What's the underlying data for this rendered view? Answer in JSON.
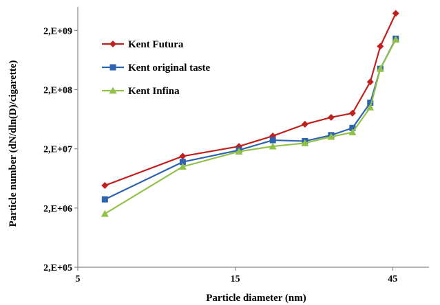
{
  "chart_data": {
    "type": "line",
    "xlabel": "Particle diameter (nm)",
    "ylabel": "Particle number (dN/dln(D)/cigarette)",
    "x_scale": "log",
    "y_scale": "log",
    "xlim": [
      5,
      58
    ],
    "ylim": [
      200000,
      5000000000
    ],
    "x_ticks": [
      5,
      15,
      45
    ],
    "x_tick_labels": [
      "5",
      "15",
      "45"
    ],
    "y_ticks": [
      200000,
      2000000,
      20000000,
      200000000,
      2000000000
    ],
    "y_tick_labels": [
      "2,E+05",
      "2,E+06",
      "2,E+07",
      "2,E+08",
      "2,E+09"
    ],
    "grid": false,
    "legend_position": "top-left",
    "x": [
      6.04,
      10.4,
      15.4,
      19.5,
      24.4,
      29.3,
      34.0,
      38.5,
      41.3,
      46.0,
      49.5
    ],
    "series": [
      {
        "name": "Kent Futura",
        "color": "#C0211E",
        "marker": "diamond",
        "values": [
          4800000,
          15000000,
          22000000,
          33000000,
          52000000,
          68000000,
          80000000,
          270000000,
          1080000000,
          3880000000,
          null
        ]
      },
      {
        "name": "Kent original taste",
        "color": "#2E63AE",
        "marker": "square",
        "values": [
          2800000,
          12000000,
          19000000,
          28000000,
          27000000,
          34000000,
          45000000,
          120000000,
          450000000,
          1450000000,
          null
        ]
      },
      {
        "name": "Kent Infina",
        "color": "#92C14A",
        "marker": "triangle",
        "values": [
          1600000,
          10000000,
          18000000,
          22000000,
          25000000,
          32000000,
          38000000,
          100000000,
          450000000,
          1400000000,
          null
        ]
      }
    ]
  }
}
